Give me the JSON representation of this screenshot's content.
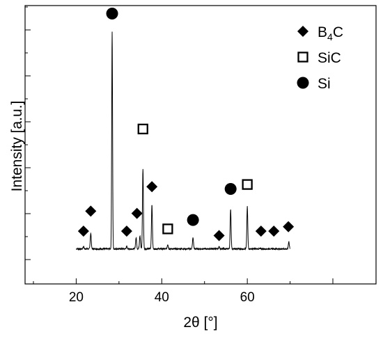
{
  "chart_data": {
    "type": "line",
    "title": "",
    "xlabel": "2θ [°]",
    "ylabel": "Intensity [a.u.]",
    "xlim": [
      10,
      80
    ],
    "xticks": [
      20,
      40,
      60
    ],
    "xtick_labels": [
      "20",
      "40",
      "60"
    ],
    "y_tick_labels_shown": false,
    "grid": false,
    "legend_position": "top-right",
    "legend": [
      {
        "label_main": "B",
        "label_sub": "4",
        "label_end": "C",
        "marker": "diamond"
      },
      {
        "label_main": "SiC",
        "label_sub": "",
        "label_end": "",
        "marker": "open-square"
      },
      {
        "label_main": "Si",
        "label_sub": "",
        "label_end": "",
        "marker": "filled-circle"
      }
    ],
    "baseline": 0.02,
    "peaks": [
      {
        "x": 21.7,
        "y": 0.03,
        "w": 0.12
      },
      {
        "x": 23.4,
        "y": 0.09,
        "w": 0.12
      },
      {
        "x": 28.4,
        "y": 1.0,
        "w": 0.1
      },
      {
        "x": 31.8,
        "y": 0.03,
        "w": 0.12
      },
      {
        "x": 34.0,
        "y": 0.07,
        "w": 0.12
      },
      {
        "x": 34.9,
        "y": 0.08,
        "w": 0.12
      },
      {
        "x": 35.6,
        "y": 0.38,
        "w": 0.11
      },
      {
        "x": 37.7,
        "y": 0.22,
        "w": 0.11
      },
      {
        "x": 41.4,
        "y": 0.04,
        "w": 0.12
      },
      {
        "x": 47.3,
        "y": 0.07,
        "w": 0.12
      },
      {
        "x": 53.4,
        "y": 0.03,
        "w": 0.12
      },
      {
        "x": 56.1,
        "y": 0.2,
        "w": 0.11
      },
      {
        "x": 60.0,
        "y": 0.21,
        "w": 0.11
      },
      {
        "x": 61.7,
        "y": 0.02,
        "w": 0.12
      },
      {
        "x": 63.6,
        "y": 0.02,
        "w": 0.12
      },
      {
        "x": 66.1,
        "y": 0.02,
        "w": 0.12
      },
      {
        "x": 69.7,
        "y": 0.05,
        "w": 0.12
      }
    ],
    "series": [
      {
        "points": [
          [
            20,
            0.02
          ],
          [
            21.7,
            0.03
          ],
          [
            23.4,
            0.09
          ],
          [
            28.4,
            1.0
          ],
          [
            31.8,
            0.03
          ],
          [
            34.0,
            0.07
          ],
          [
            34.9,
            0.08
          ],
          [
            35.6,
            0.38
          ],
          [
            37.7,
            0.22
          ],
          [
            41.4,
            0.04
          ],
          [
            47.3,
            0.07
          ],
          [
            53.4,
            0.03
          ],
          [
            56.1,
            0.2
          ],
          [
            60.0,
            0.21
          ],
          [
            61.7,
            0.02
          ],
          [
            63.6,
            0.02
          ],
          [
            66.1,
            0.02
          ],
          [
            69.7,
            0.05
          ],
          [
            70,
            0.02
          ]
        ]
      }
    ],
    "markers": [
      {
        "x": 21.7,
        "y": 0.1,
        "type": "diamond"
      },
      {
        "x": 23.4,
        "y": 0.19,
        "type": "diamond"
      },
      {
        "x": 28.4,
        "y": 1.08,
        "type": "circle"
      },
      {
        "x": 31.8,
        "y": 0.1,
        "type": "diamond"
      },
      {
        "x": 34.2,
        "y": 0.18,
        "type": "diamond"
      },
      {
        "x": 35.6,
        "y": 0.56,
        "type": "square"
      },
      {
        "x": 37.7,
        "y": 0.3,
        "type": "diamond"
      },
      {
        "x": 41.4,
        "y": 0.11,
        "type": "square"
      },
      {
        "x": 47.3,
        "y": 0.15,
        "type": "circle"
      },
      {
        "x": 53.4,
        "y": 0.08,
        "type": "diamond"
      },
      {
        "x": 56.1,
        "y": 0.29,
        "type": "circle"
      },
      {
        "x": 60.0,
        "y": 0.31,
        "type": "square"
      },
      {
        "x": 63.2,
        "y": 0.1,
        "type": "diamond"
      },
      {
        "x": 66.2,
        "y": 0.1,
        "type": "diamond"
      },
      {
        "x": 69.6,
        "y": 0.12,
        "type": "diamond"
      }
    ],
    "colors": {
      "line": "#000000",
      "marker": "#000000",
      "axis": "#000000",
      "background": "#ffffff"
    }
  }
}
